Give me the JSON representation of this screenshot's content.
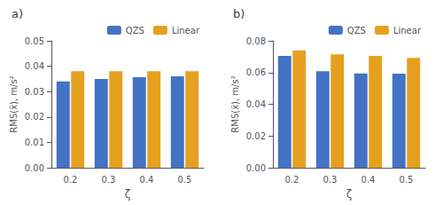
{
  "chart_data": [
    {
      "type": "bar",
      "title": "a)",
      "categories": [
        "0.2",
        "0.3",
        "0.4",
        "0.5"
      ],
      "series": [
        {
          "name": "QZS",
          "color": "#4472C4",
          "values": [
            0.034,
            0.035,
            0.0357,
            0.036
          ]
        },
        {
          "name": "Linear",
          "color": "#E6A020",
          "values": [
            0.038,
            0.038,
            0.038,
            0.038
          ]
        }
      ],
      "xlabel": "ζ",
      "ylabel": "RMS(ẍ), m/s²",
      "ylim": [
        0,
        0.05
      ],
      "yticks": [
        {
          "value": 0,
          "label": "0.00"
        },
        0.01,
        0.02,
        0.03,
        0.04,
        0.05
      ],
      "grid": false,
      "legend": "upper right"
    },
    {
      "type": "bar",
      "title": "b)",
      "categories": [
        "0.2",
        "0.3",
        "0.4",
        "0.5"
      ],
      "series": [
        {
          "name": "QZS",
          "color": "#4472C4",
          "values": [
            0.0705,
            0.0608,
            0.0595,
            0.0593
          ]
        },
        {
          "name": "Linear",
          "color": "#E6A020",
          "values": [
            0.074,
            0.0715,
            0.0705,
            0.0693
          ]
        }
      ],
      "xlabel": "ζ",
      "ylabel": "RMS(ẍ), m/s²",
      "ylim": [
        0,
        0.08
      ],
      "yticks": [
        {
          "value": 0,
          "label": "0.00"
        },
        0.02,
        0.04,
        0.06,
        0.08
      ],
      "grid": false,
      "legend": "upper right"
    }
  ]
}
